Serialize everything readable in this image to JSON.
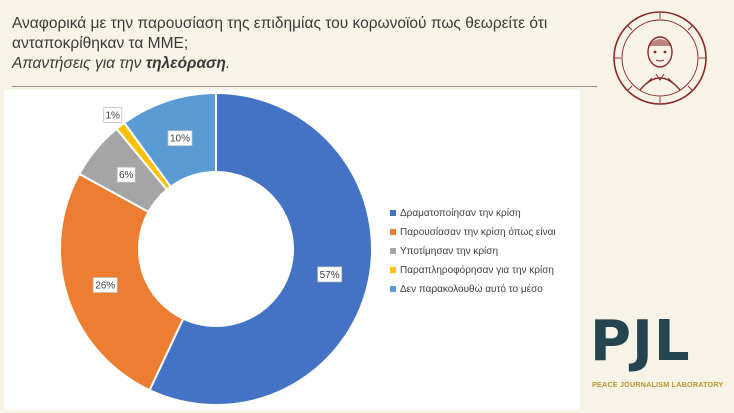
{
  "header": {
    "question_line1": "Αναφορικά με την παρουσίαση της επιδημίας του κορωνοϊού πως θεωρείτε ότι",
    "question_line2": "ανταποκρίθηκαν τα ΜΜΕ;",
    "subtitle_prefix": "Απαντήσεις για την ",
    "subtitle_bold": "τηλεόραση",
    "subtitle_suffix": "."
  },
  "branding": {
    "seal_icon": "university-seal-icon",
    "pjl_letters": "PJL",
    "pjl_caption": "PEACE JOURNALISM LABORATORY"
  },
  "colors": {
    "background": "#f7f3e6",
    "plot_bg": "#ffffff"
  },
  "chart_data": {
    "type": "pie",
    "donut": true,
    "legend_position": "right",
    "categories": [
      "Δραματοποίησαν την κρίση",
      "Παρουσίασαν την κρίση όπως είναι",
      "Υποτίμησαν την κρίση",
      "Παραπληροφόρησαν για την κρίση",
      "Δεν παρακολουθώ αυτό το μέσο"
    ],
    "values": [
      57,
      26,
      6,
      1,
      10
    ],
    "labels": [
      "57%",
      "26%",
      "6%",
      "1%",
      "10%"
    ],
    "colors": [
      "#4472c4",
      "#ed7d31",
      "#a5a5a5",
      "#ffc000",
      "#5b9bd5"
    ]
  }
}
